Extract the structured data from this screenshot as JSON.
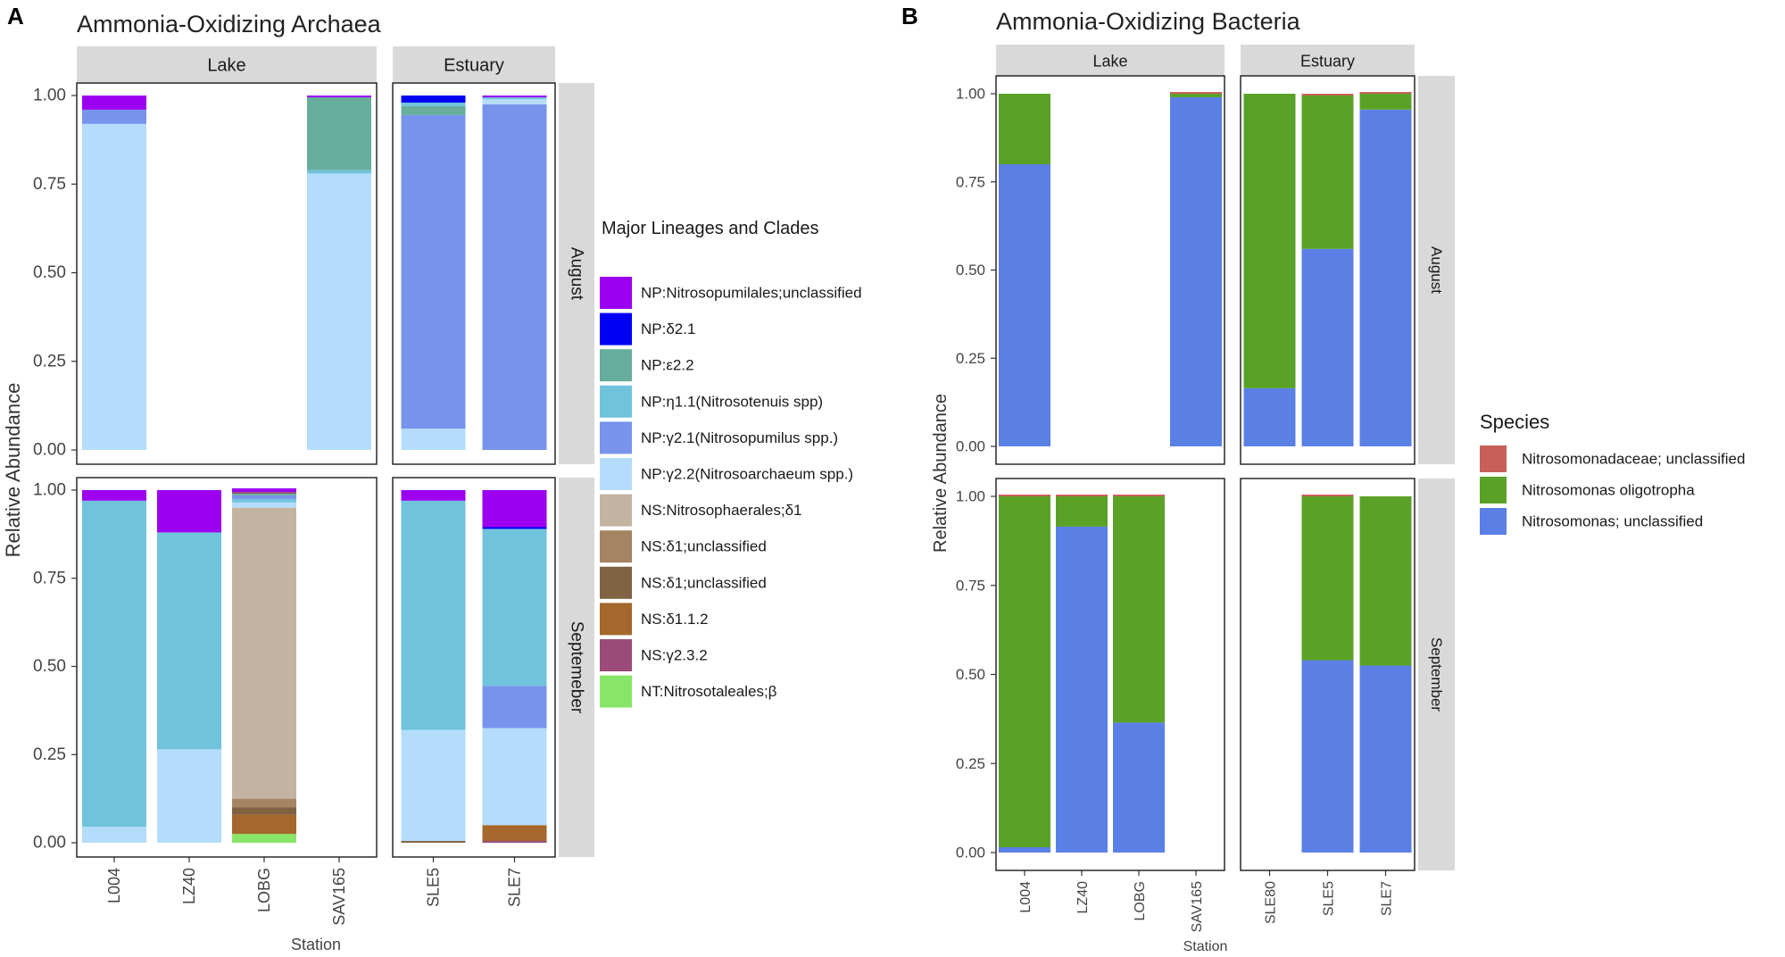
{
  "chart_data": [
    {
      "type": "stacked-bar-facet",
      "panel_letter": "A",
      "title": "Ammonia-Oxidizing Archaea",
      "xlabel": "Station",
      "ylabel": "Relative Abundance",
      "ylim": [
        0,
        1
      ],
      "yticks": [
        "0.00",
        "0.25",
        "0.50",
        "0.75",
        "1.00"
      ],
      "grid": false,
      "legend_title": "Major Lineages and Clades",
      "legend_position": "right",
      "col_facets": [
        "Lake",
        "Estuary"
      ],
      "row_facets": [
        "August",
        "Septemeber"
      ],
      "legend": [
        {
          "key": "np_unc",
          "label": "NP:Nitrosopumilales;unclassified",
          "color": "#9b00f0"
        },
        {
          "key": "np_d21",
          "label": "NP:δ2.1",
          "color": "#0000f2"
        },
        {
          "key": "np_e22",
          "label": "NP:ε2.2",
          "color": "#66ad9c"
        },
        {
          "key": "np_n11",
          "label": "NP:η1.1(Nitrosotenuis spp)",
          "color": "#70c3dc"
        },
        {
          "key": "np_g21",
          "label": "NP:γ2.1(Nitrosopumilus spp.)",
          "color": "#7893ec"
        },
        {
          "key": "np_g22",
          "label": "NP:γ2.2(Nitrosoarchaeum spp.)",
          "color": "#b4ddfb"
        },
        {
          "key": "ns_d1",
          "label": "NS:Nitrosophaerales;δ1",
          "color": "#c4b3a0"
        },
        {
          "key": "ns_d1u_a",
          "label": "NS:δ1;unclassified",
          "color": "#a58461"
        },
        {
          "key": "ns_d1u_b",
          "label": "NS:δ1;unclassified",
          "color": "#7f6343"
        },
        {
          "key": "ns_d112",
          "label": "NS:δ1.1.2",
          "color": "#a5672b"
        },
        {
          "key": "ns_g232",
          "label": "NS:γ2.3.2",
          "color": "#9b4b79"
        },
        {
          "key": "nt_b",
          "label": "NT:Nitrosotaleales;β",
          "color": "#89e567"
        }
      ],
      "facets": [
        {
          "row": "August",
          "col": "Lake",
          "bars": [
            {
              "station": "L004",
              "segments": [
                {
                  "key": "np_g22",
                  "value": 0.92
                },
                {
                  "key": "np_g21",
                  "value": 0.04
                },
                {
                  "key": "np_unc",
                  "value": 0.04
                }
              ]
            },
            {
              "station": "LZ40",
              "segments": []
            },
            {
              "station": "LOBG",
              "segments": []
            },
            {
              "station": "SAV165",
              "segments": [
                {
                  "key": "np_g22",
                  "value": 0.78
                },
                {
                  "key": "np_n11",
                  "value": 0.01
                },
                {
                  "key": "np_e22",
                  "value": 0.205
                },
                {
                  "key": "np_unc",
                  "value": 0.005
                }
              ]
            }
          ]
        },
        {
          "row": "August",
          "col": "Estuary",
          "bars": [
            {
              "station": "SLE5",
              "segments": [
                {
                  "key": "np_g22",
                  "value": 0.06
                },
                {
                  "key": "np_g21",
                  "value": 0.885
                },
                {
                  "key": "np_e22",
                  "value": 0.025
                },
                {
                  "key": "np_n11",
                  "value": 0.01
                },
                {
                  "key": "np_d21",
                  "value": 0.02
                }
              ]
            },
            {
              "station": "SLE7",
              "segments": [
                {
                  "key": "np_g21",
                  "value": 0.975
                },
                {
                  "key": "np_g22",
                  "value": 0.015
                },
                {
                  "key": "np_n11",
                  "value": 0.005
                },
                {
                  "key": "np_unc",
                  "value": 0.005
                }
              ]
            }
          ]
        },
        {
          "row": "Septemeber",
          "col": "Lake",
          "bars": [
            {
              "station": "L004",
              "segments": [
                {
                  "key": "np_g22",
                  "value": 0.045
                },
                {
                  "key": "np_n11",
                  "value": 0.925
                },
                {
                  "key": "np_unc",
                  "value": 0.03
                }
              ]
            },
            {
              "station": "LZ40",
              "segments": [
                {
                  "key": "np_g22",
                  "value": 0.265
                },
                {
                  "key": "np_n11",
                  "value": 0.615
                },
                {
                  "key": "np_unc",
                  "value": 0.12
                }
              ]
            },
            {
              "station": "LOBG",
              "segments": [
                {
                  "key": "nt_b",
                  "value": 0.025
                },
                {
                  "key": "ns_d112",
                  "value": 0.055
                },
                {
                  "key": "ns_d1u_b",
                  "value": 0.02
                },
                {
                  "key": "ns_d1u_a",
                  "value": 0.025
                },
                {
                  "key": "ns_d1",
                  "value": 0.825
                },
                {
                  "key": "np_g22",
                  "value": 0.015
                },
                {
                  "key": "np_n11",
                  "value": 0.01
                },
                {
                  "key": "np_g21",
                  "value": 0.01
                },
                {
                  "key": "np_e22",
                  "value": 0.005
                },
                {
                  "key": "ns_g232",
                  "value": 0.005
                },
                {
                  "key": "np_unc",
                  "value": 0.01
                }
              ]
            },
            {
              "station": "SAV165",
              "segments": []
            }
          ]
        },
        {
          "row": "Septemeber",
          "col": "Estuary",
          "bars": [
            {
              "station": "SLE5",
              "segments": [
                {
                  "key": "ns_d1u_b",
                  "value": 0.005
                },
                {
                  "key": "np_g22",
                  "value": 0.315
                },
                {
                  "key": "np_n11",
                  "value": 0.65
                },
                {
                  "key": "np_unc",
                  "value": 0.03
                }
              ]
            },
            {
              "station": "SLE7",
              "segments": [
                {
                  "key": "ns_g232",
                  "value": 0.005
                },
                {
                  "key": "ns_d112",
                  "value": 0.045
                },
                {
                  "key": "np_g22",
                  "value": 0.275
                },
                {
                  "key": "np_g21",
                  "value": 0.12
                },
                {
                  "key": "np_n11",
                  "value": 0.445
                },
                {
                  "key": "np_d21",
                  "value": 0.005
                },
                {
                  "key": "np_unc",
                  "value": 0.105
                }
              ]
            }
          ]
        }
      ]
    },
    {
      "type": "stacked-bar-facet",
      "panel_letter": "B",
      "title": "Ammonia-Oxidizing Bacteria",
      "xlabel": "Station",
      "ylabel": "Relative Abundance",
      "ylim": [
        0,
        1
      ],
      "yticks": [
        "0.00",
        "0.25",
        "0.50",
        "0.75",
        "1.00"
      ],
      "grid": false,
      "legend_title": "Species",
      "legend_position": "right",
      "col_facets": [
        "Lake",
        "Estuary"
      ],
      "row_facets": [
        "August",
        "September"
      ],
      "legend": [
        {
          "key": "nm_unc",
          "label": "Nitrosomonadaceae; unclassified",
          "color": "#c8605a"
        },
        {
          "key": "n_olig",
          "label": "Nitrosomonas oligotropha",
          "color": "#5aa227"
        },
        {
          "key": "n_unc",
          "label": "Nitrosomonas; unclassified",
          "color": "#5a80e6"
        }
      ],
      "facets": [
        {
          "row": "August",
          "col": "Lake",
          "bars": [
            {
              "station": "L004",
              "segments": [
                {
                  "key": "n_unc",
                  "value": 0.8
                },
                {
                  "key": "n_olig",
                  "value": 0.2
                }
              ]
            },
            {
              "station": "LZ40",
              "segments": []
            },
            {
              "station": "LOBG",
              "segments": []
            },
            {
              "station": "SAV165",
              "segments": [
                {
                  "key": "n_unc",
                  "value": 0.99
                },
                {
                  "key": "n_olig",
                  "value": 0.01
                },
                {
                  "key": "nm_unc",
                  "value": 0.005
                }
              ]
            }
          ]
        },
        {
          "row": "August",
          "col": "Estuary",
          "bars": [
            {
              "station": "SLE80",
              "segments": [
                {
                  "key": "n_unc",
                  "value": 0.165
                },
                {
                  "key": "n_olig",
                  "value": 0.835
                }
              ]
            },
            {
              "station": "SLE5",
              "segments": [
                {
                  "key": "n_unc",
                  "value": 0.56
                },
                {
                  "key": "n_olig",
                  "value": 0.435
                },
                {
                  "key": "nm_unc",
                  "value": 0.005
                }
              ]
            },
            {
              "station": "SLE7",
              "segments": [
                {
                  "key": "n_unc",
                  "value": 0.955
                },
                {
                  "key": "n_olig",
                  "value": 0.045
                },
                {
                  "key": "nm_unc",
                  "value": 0.005
                }
              ]
            }
          ]
        },
        {
          "row": "September",
          "col": "Lake",
          "bars": [
            {
              "station": "L004",
              "segments": [
                {
                  "key": "n_unc",
                  "value": 0.015
                },
                {
                  "key": "n_olig",
                  "value": 0.985
                },
                {
                  "key": "nm_unc",
                  "value": 0.005
                }
              ]
            },
            {
              "station": "LZ40",
              "segments": [
                {
                  "key": "n_unc",
                  "value": 0.915
                },
                {
                  "key": "n_olig",
                  "value": 0.085
                },
                {
                  "key": "nm_unc",
                  "value": 0.005
                }
              ]
            },
            {
              "station": "LOBG",
              "segments": [
                {
                  "key": "n_unc",
                  "value": 0.365
                },
                {
                  "key": "n_olig",
                  "value": 0.635
                },
                {
                  "key": "nm_unc",
                  "value": 0.005
                }
              ]
            },
            {
              "station": "SAV165",
              "segments": []
            }
          ]
        },
        {
          "row": "September",
          "col": "Estuary",
          "bars": [
            {
              "station": "SLE80",
              "segments": []
            },
            {
              "station": "SLE5",
              "segments": [
                {
                  "key": "n_unc",
                  "value": 0.54
                },
                {
                  "key": "n_olig",
                  "value": 0.46
                },
                {
                  "key": "nm_unc",
                  "value": 0.005
                }
              ]
            },
            {
              "station": "SLE7",
              "segments": [
                {
                  "key": "n_unc",
                  "value": 0.525
                },
                {
                  "key": "n_olig",
                  "value": 0.475
                }
              ]
            }
          ]
        }
      ]
    }
  ]
}
